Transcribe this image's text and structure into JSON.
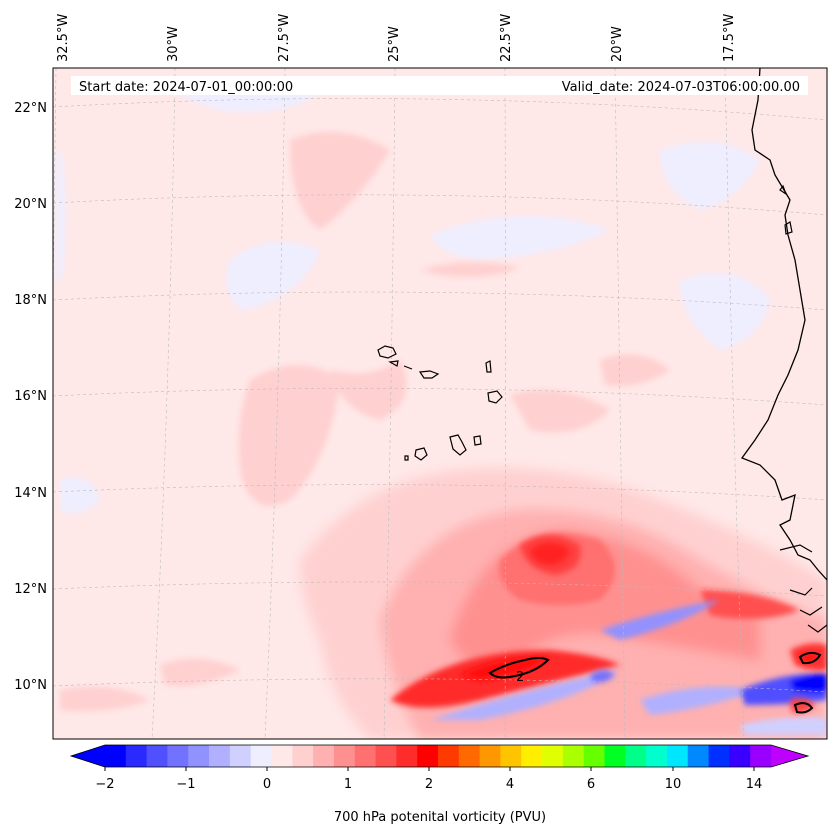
{
  "header": {
    "start_date": "Start date: 2024-07-01_00:00:00",
    "valid_date": "Valid_date: 2024-07-03T06:00:00.00"
  },
  "axes": {
    "lon_labels": [
      "32.5°W",
      "30°W",
      "27.5°W",
      "25°W",
      "22.5°W",
      "20°W",
      "17.5°W"
    ],
    "lat_labels": [
      "22°N",
      "20°N",
      "18°N",
      "16°N",
      "14°N",
      "12°N",
      "10°N"
    ]
  },
  "contour_label": "2",
  "colorbar": {
    "label": "700 hPa potenital vorticity (PVU)",
    "ticks": [
      "−2",
      "−1",
      "0",
      "1",
      "2",
      "4",
      "6",
      "10",
      "14"
    ],
    "colors": [
      "#0000ff",
      "#2a2aff",
      "#5050ff",
      "#7272ff",
      "#9191ff",
      "#b0b0ff",
      "#d0d0ff",
      "#eeeeff",
      "#ffe8e8",
      "#ffd0d0",
      "#ffb0b0",
      "#ff9090",
      "#ff7070",
      "#ff5050",
      "#ff2c2c",
      "#ff0000",
      "#ff3a00",
      "#ff6a00",
      "#ff9800",
      "#ffc400",
      "#ffee00",
      "#e0ff00",
      "#aaff00",
      "#66ff00",
      "#00ff22",
      "#00ff88",
      "#00ffcc",
      "#00e6ff",
      "#0088ff",
      "#0030ff",
      "#3a00ff",
      "#9a00ff"
    ],
    "extend_min_color": "#0000ff",
    "extend_max_color": "#c000ff"
  }
}
